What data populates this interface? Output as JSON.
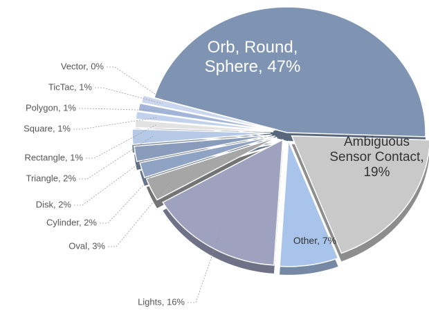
{
  "chart_data": {
    "type": "pie",
    "labels": [
      "Orb, Round, Sphere, 47%",
      "Ambiguous Sensor Contact, 19%",
      "Other, 7%",
      "Lights, 16%",
      "Oval, 3%",
      "Cylinder, 2%",
      "Disk, 2%",
      "Triangle, 2%",
      "Rectangle, 1%",
      "Square, 1%",
      "Polygon, 1%",
      "TicTac, 1%",
      "Vector, 0%"
    ],
    "values": [
      47,
      19,
      7,
      16,
      3,
      2,
      2,
      2,
      1,
      1,
      1,
      1,
      0
    ],
    "colors": [
      "#7f93b3",
      "#c9c9c9",
      "#a9c4ea",
      "#9ea2bf",
      "#a6a6a6",
      "#8fa3c4",
      "#8a9cbc",
      "#b6cae8",
      "#e2e2e2",
      "#c3d2ec",
      "#a2b5d8",
      "#cad7ee",
      "#8f9fbd"
    ]
  }
}
